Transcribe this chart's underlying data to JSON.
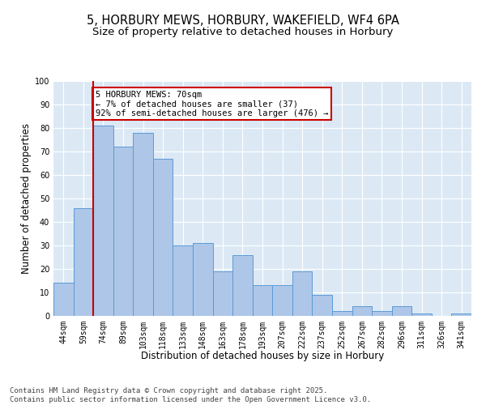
{
  "title_line1": "5, HORBURY MEWS, HORBURY, WAKEFIELD, WF4 6PA",
  "title_line2": "Size of property relative to detached houses in Horbury",
  "xlabel": "Distribution of detached houses by size in Horbury",
  "ylabel": "Number of detached properties",
  "categories": [
    "44sqm",
    "59sqm",
    "74sqm",
    "89sqm",
    "103sqm",
    "118sqm",
    "133sqm",
    "148sqm",
    "163sqm",
    "178sqm",
    "193sqm",
    "207sqm",
    "222sqm",
    "237sqm",
    "252sqm",
    "267sqm",
    "282sqm",
    "296sqm",
    "311sqm",
    "326sqm",
    "341sqm"
  ],
  "values": [
    14,
    46,
    81,
    72,
    78,
    67,
    30,
    31,
    19,
    26,
    13,
    13,
    19,
    9,
    2,
    4,
    2,
    4,
    1,
    0,
    1
  ],
  "bar_color": "#aec6e8",
  "bar_edge_color": "#5b9bd5",
  "marker_color": "#cc0000",
  "annotation_text": "5 HORBURY MEWS: 70sqm\n← 7% of detached houses are smaller (37)\n92% of semi-detached houses are larger (476) →",
  "annotation_box_color": "#ffffff",
  "annotation_box_edge": "#cc0000",
  "footer_text": "Contains HM Land Registry data © Crown copyright and database right 2025.\nContains public sector information licensed under the Open Government Licence v3.0.",
  "ylim": [
    0,
    100
  ],
  "yticks": [
    0,
    10,
    20,
    30,
    40,
    50,
    60,
    70,
    80,
    90,
    100
  ],
  "background_color": "#dce9f5",
  "fig_background": "#ffffff",
  "grid_color": "#ffffff",
  "title_fontsize": 10.5,
  "subtitle_fontsize": 9.5,
  "axis_label_fontsize": 8.5,
  "tick_fontsize": 7,
  "footer_fontsize": 6.5,
  "annotation_fontsize": 7.5
}
